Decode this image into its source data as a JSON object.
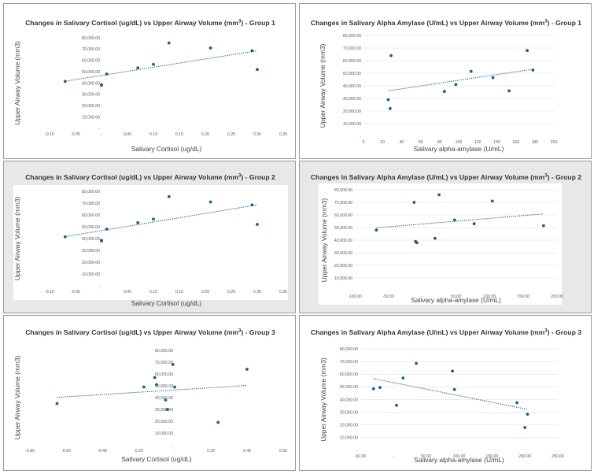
{
  "chart_data": [
    {
      "type": "scatter",
      "title": "Changes in Salivary Cortisol (ug/dL) vs Upper Airway Volume (mm",
      "title_superscript": "3",
      "title_suffix": ") - Group 1",
      "xlabel": "Salivary Cortisol (ug/dL)",
      "ylabel": "Upper Airway Volume (mm3)",
      "xlim": [
        -0.1,
        0.35
      ],
      "ylim": [
        0,
        80000
      ],
      "x_ticks": [
        -0.1,
        -0.05,
        0,
        0.05,
        0.1,
        0.15,
        0.2,
        0.25,
        0.3,
        0.35
      ],
      "x_tick_labels": [
        "-0.10",
        "-0.05",
        "-",
        "0.05",
        "0.10",
        "0.15",
        "0.20",
        "0.25",
        "0.30",
        "0.35"
      ],
      "y_ticks": [
        0,
        10000,
        20000,
        30000,
        40000,
        50000,
        60000,
        70000,
        80000
      ],
      "y_tick_labels": [
        "-",
        "10,000.00",
        "20,000.00",
        "30,000.00",
        "40,000.00",
        "50,000.00",
        "60,000.00",
        "70,000.00",
        "80,000.00"
      ],
      "x_axis_at_zero": true,
      "y_axis_at_zero": true,
      "grid": false,
      "trendline": "linear",
      "x": [
        -0.07,
        0.0,
        0.0,
        0.01,
        0.07,
        0.1,
        0.13,
        0.21,
        0.29,
        0.3
      ],
      "y": [
        41500,
        38500,
        38000,
        48000,
        53500,
        56500,
        75500,
        71000,
        68500,
        52000
      ]
    },
    {
      "type": "scatter",
      "title": "Changes in Salivary Alpha Amylase (U/mL) vs Upper Airway Volume (mm",
      "title_superscript": "3",
      "title_suffix": ") - Group 1",
      "xlabel": "Salivary alpha-amylase (U/mL)",
      "ylabel": "Upper Airway Volume (mm3)",
      "xlim": [
        0,
        200
      ],
      "ylim": [
        0,
        80000
      ],
      "x_ticks": [
        0,
        20,
        40,
        60,
        80,
        100,
        120,
        140,
        160,
        180,
        200
      ],
      "x_tick_labels": [
        "0",
        "20",
        "40",
        "60",
        "80",
        "100",
        "120",
        "140",
        "160",
        "180",
        "200"
      ],
      "y_ticks": [
        0,
        10000,
        20000,
        30000,
        40000,
        50000,
        60000,
        70000,
        80000
      ],
      "y_tick_labels": [
        "-",
        "10,000.00",
        "20,000.00",
        "30,000.00",
        "40,000.00",
        "50,000.00",
        "60,000.00",
        "70,000.00",
        "80,000.00"
      ],
      "x_axis_at_zero": true,
      "y_axis_at_zero": false,
      "grid": true,
      "trendline": "linear",
      "x": [
        26,
        28,
        29,
        85,
        97,
        113,
        136,
        153,
        172,
        178
      ],
      "y": [
        29000,
        22000,
        64000,
        35500,
        41000,
        51500,
        46500,
        36000,
        68000,
        52500
      ]
    },
    {
      "type": "scatter",
      "title": "Changes in Salivary Cortisol (ug/dL) vs Upper Airway Volume (mm",
      "title_superscript": "3",
      "title_suffix": ") - Group 2",
      "xlabel": "Salivary Cortisol (ug/dL)",
      "ylabel": "Upper Airway Volume (mm3)",
      "xlim": [
        -0.1,
        0.35
      ],
      "ylim": [
        0,
        80000
      ],
      "x_ticks": [
        -0.1,
        -0.05,
        0,
        0.05,
        0.1,
        0.15,
        0.2,
        0.25,
        0.3,
        0.35
      ],
      "x_tick_labels": [
        "-0.10",
        "-0.05",
        "-",
        "0.05",
        "0.10",
        "0.15",
        "0.20",
        "0.25",
        "0.30",
        "0.35"
      ],
      "y_ticks": [
        0,
        10000,
        20000,
        30000,
        40000,
        50000,
        60000,
        70000,
        80000
      ],
      "y_tick_labels": [
        "-",
        "10,000.00",
        "20,000.00",
        "30,000.00",
        "40,000.00",
        "50,000.00",
        "60,000.00",
        "70,000.00",
        "80,000.00"
      ],
      "x_axis_at_zero": true,
      "y_axis_at_zero": true,
      "grid": false,
      "trendline": "linear",
      "x": [
        -0.07,
        0.0,
        0.0,
        0.01,
        0.07,
        0.1,
        0.13,
        0.21,
        0.29,
        0.3
      ],
      "y": [
        41500,
        38500,
        38000,
        48000,
        53500,
        56500,
        75500,
        71000,
        68500,
        52000
      ]
    },
    {
      "type": "scatter",
      "title": "Changes in Salivary Alpha Amylase (U/mL) vs Upper Airway Volume (mm",
      "title_superscript": "3",
      "title_suffix": ") - Group 2",
      "xlabel": "Salivary alpha-amylase (U/mL)",
      "ylabel": "Upper Airway Volume (mm3)",
      "xlim": [
        -100,
        200
      ],
      "ylim": [
        0,
        80000
      ],
      "x_ticks": [
        -100,
        -50,
        0,
        50,
        100,
        150,
        200
      ],
      "x_tick_labels": [
        "-100.00",
        "-50.00",
        "-",
        "50.00",
        "100.00",
        "150.00",
        "200.00"
      ],
      "y_ticks": [
        0,
        10000,
        20000,
        30000,
        40000,
        50000,
        60000,
        70000,
        80000
      ],
      "y_tick_labels": [
        "-",
        "10,000.00",
        "20,000.00",
        "30,000.00",
        "40,000.00",
        "50,000.00",
        "60,000.00",
        "70,000.00",
        "80,000.00"
      ],
      "x_axis_at_zero": true,
      "y_axis_at_zero": false,
      "grid": true,
      "trendline": "linear",
      "x": [
        -68,
        -12,
        -10,
        -8,
        19,
        25,
        48,
        77,
        104,
        180
      ],
      "y": [
        48000,
        70000,
        39000,
        38000,
        41500,
        76000,
        56000,
        53000,
        71000,
        51500
      ]
    },
    {
      "type": "scatter",
      "title": "Changes in Salivary Cortisol (ug/dL) vs Upper Airway Volume (mm",
      "title_superscript": "3",
      "title_suffix": ") - Group 3",
      "xlabel": "Salivary Cortisol (ug/dL)",
      "ylabel": "Upper Airway Volume (mm3)",
      "xlim": [
        -0.8,
        0.6
      ],
      "ylim": [
        0,
        80000
      ],
      "x_ticks": [
        -0.8,
        -0.6,
        -0.4,
        -0.2,
        0,
        0.2,
        0.4,
        0.6
      ],
      "x_tick_labels": [
        "-0.80",
        "-0.60",
        "-0.40",
        "-0.20",
        "-",
        "0.20",
        "0.40",
        "0.60"
      ],
      "y_ticks": [
        0,
        10000,
        20000,
        30000,
        40000,
        50000,
        60000,
        70000,
        80000
      ],
      "y_tick_labels": [
        "-",
        "10,000.00",
        "20,000.00",
        "30,000.00",
        "40,000.00",
        "50,000.00",
        "60,000.00",
        "70,000.00",
        "80,000.00"
      ],
      "x_axis_at_zero": true,
      "y_axis_at_zero": true,
      "grid": false,
      "trendline": "linear",
      "x": [
        -0.65,
        -0.17,
        -0.11,
        -0.1,
        -0.05,
        -0.04,
        -0.01,
        0.0,
        0.24,
        0.4
      ],
      "y": [
        35000,
        49000,
        57000,
        51000,
        38000,
        30000,
        68000,
        49000,
        19000,
        64000
      ]
    },
    {
      "type": "scatter",
      "title": "Changes in Salivary Alpha Amylase (U/mL) vs Upper Airway Volume (mm",
      "title_superscript": "3",
      "title_suffix": ") - Group 3",
      "xlabel": "Salivary alpha-amylase (U/mL)",
      "ylabel": "Upper Airway Volume (mm3)",
      "xlim": [
        -50,
        250
      ],
      "ylim": [
        0,
        80000
      ],
      "x_ticks": [
        -50,
        0,
        50,
        100,
        150,
        200,
        250
      ],
      "x_tick_labels": [
        "-50.00",
        "-",
        "50.00",
        "100.00",
        "150.00",
        "200.00",
        "250.00"
      ],
      "y_ticks": [
        0,
        10000,
        20000,
        30000,
        40000,
        50000,
        60000,
        70000,
        80000
      ],
      "y_tick_labels": [
        "-",
        "10,000.00",
        "20,000.00",
        "30,000.00",
        "40,000.00",
        "50,000.00",
        "60,000.00",
        "70,000.00",
        "80,000.00"
      ],
      "x_axis_at_zero": true,
      "y_axis_at_zero": false,
      "grid": true,
      "trendline": "linear",
      "x": [
        -30,
        -20,
        5,
        15,
        35,
        90,
        93,
        188,
        200,
        204
      ],
      "y": [
        48500,
        49500,
        35500,
        57000,
        68500,
        62500,
        48000,
        37500,
        18000,
        28500
      ]
    }
  ]
}
